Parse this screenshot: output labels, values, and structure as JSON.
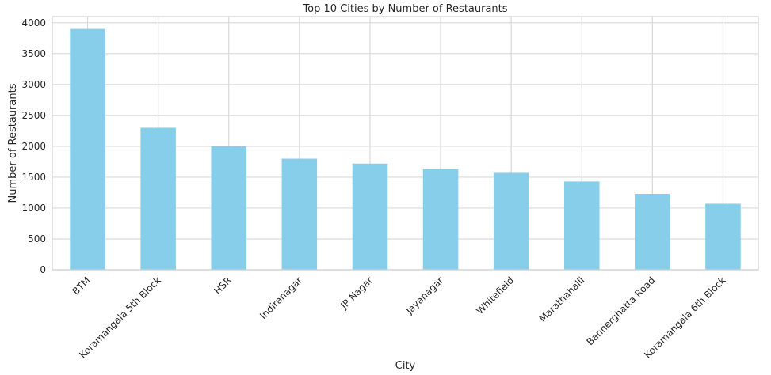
{
  "chart_data": {
    "type": "bar",
    "title": "Top 10 Cities by Number of Restaurants",
    "xlabel": "City",
    "ylabel": "Number of Restaurants",
    "categories": [
      "BTM",
      "Koramangala 5th Block",
      "HSR",
      "Indiranagar",
      "JP Nagar",
      "Jayanagar",
      "Whitefield",
      "Marathahalli",
      "Bannerghatta Road",
      "Koramangala 6th Block"
    ],
    "values": [
      3900,
      2300,
      2000,
      1800,
      1720,
      1630,
      1570,
      1430,
      1230,
      1070
    ],
    "ylim": [
      0,
      4100
    ],
    "yticks": [
      0,
      500,
      1000,
      1500,
      2000,
      2500,
      3000,
      3500,
      4000
    ],
    "grid": true,
    "bar_color": "#87ceeb"
  }
}
